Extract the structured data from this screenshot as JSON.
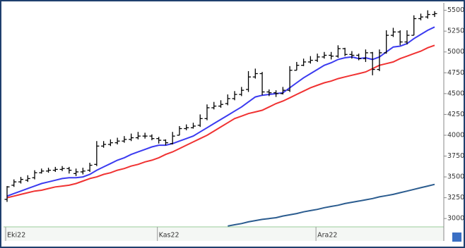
{
  "chart_data": {
    "type": "ohlc",
    "categories": [
      "Eki22",
      null,
      null,
      null,
      null,
      null,
      null,
      null,
      null,
      null,
      null,
      null,
      null,
      null,
      null,
      null,
      null,
      null,
      null,
      null,
      null,
      null,
      "Kas22",
      null,
      null,
      null,
      null,
      null,
      null,
      null,
      null,
      null,
      null,
      null,
      null,
      null,
      null,
      null,
      null,
      null,
      null,
      null,
      null,
      null,
      null,
      "Ara22",
      null,
      null,
      null,
      null,
      null,
      null,
      null,
      null,
      null,
      null,
      null,
      null,
      null,
      null,
      null,
      null,
      null
    ],
    "open": [
      3230,
      3400,
      3440,
      3460,
      3490,
      3550,
      3570,
      3580,
      3590,
      3600,
      3540,
      3560,
      3580,
      3650,
      3870,
      3890,
      3910,
      3930,
      3950,
      3970,
      3990,
      3990,
      3960,
      3940,
      3900,
      4000,
      4080,
      4090,
      4120,
      4200,
      4330,
      4350,
      4380,
      4440,
      4490,
      4550,
      4700,
      4740,
      4520,
      4510,
      4500,
      4540,
      4780,
      4840,
      4880,
      4900,
      4940,
      4960,
      4950,
      5040,
      4970,
      4960,
      4920,
      4990,
      4790,
      4990,
      5200,
      5240,
      5120,
      5200,
      5400,
      5420,
      5450
    ],
    "high": [
      3390,
      3470,
      3500,
      3520,
      3580,
      3600,
      3610,
      3620,
      3630,
      3620,
      3600,
      3610,
      3670,
      3930,
      3930,
      3950,
      3970,
      3990,
      4020,
      4040,
      4030,
      4010,
      3980,
      3950,
      4040,
      4110,
      4130,
      4150,
      4250,
      4370,
      4400,
      4420,
      4490,
      4530,
      4580,
      4770,
      4800,
      4760,
      4550,
      4540,
      4580,
      4830,
      4880,
      4920,
      4950,
      4980,
      5000,
      5000,
      5080,
      5050,
      5010,
      4980,
      5030,
      5000,
      5030,
      5260,
      5290,
      5260,
      5260,
      5440,
      5460,
      5500,
      5490
    ],
    "low": [
      3200,
      3380,
      3420,
      3440,
      3470,
      3540,
      3550,
      3560,
      3570,
      3540,
      3510,
      3530,
      3560,
      3630,
      3850,
      3870,
      3890,
      3910,
      3930,
      3950,
      3960,
      3940,
      3900,
      3880,
      3890,
      4000,
      4060,
      4080,
      4100,
      4180,
      4310,
      4330,
      4360,
      4420,
      4470,
      4520,
      4680,
      4480,
      4470,
      4460,
      4490,
      4520,
      4780,
      4830,
      4860,
      4880,
      4920,
      4910,
      4930,
      4950,
      4920,
      4900,
      4880,
      4720,
      4770,
      4980,
      5180,
      5080,
      5090,
      5200,
      5380,
      5400,
      5420
    ],
    "close": [
      3380,
      3440,
      3470,
      3480,
      3550,
      3570,
      3580,
      3590,
      3600,
      3580,
      3560,
      3570,
      3640,
      3870,
      3890,
      3910,
      3930,
      3950,
      3970,
      3990,
      3990,
      3960,
      3940,
      3910,
      3990,
      4080,
      4090,
      4110,
      4200,
      4330,
      4350,
      4370,
      4440,
      4490,
      4540,
      4700,
      4740,
      4520,
      4510,
      4500,
      4540,
      4780,
      4840,
      4880,
      4900,
      4940,
      4960,
      4950,
      5040,
      4970,
      4960,
      4920,
      4990,
      4790,
      4990,
      5200,
      5240,
      5120,
      5200,
      5400,
      5420,
      5450,
      5460
    ],
    "color": "#000000",
    "series": [
      {
        "color": "#3b3bf0",
        "values": [
          3270,
          3300,
          3330,
          3360,
          3390,
          3420,
          3440,
          3460,
          3480,
          3490,
          3490,
          3500,
          3530,
          3580,
          3620,
          3660,
          3700,
          3730,
          3770,
          3800,
          3830,
          3860,
          3880,
          3880,
          3900,
          3930,
          3960,
          3990,
          4040,
          4090,
          4140,
          4190,
          4240,
          4290,
          4340,
          4400,
          4460,
          4480,
          4490,
          4500,
          4510,
          4570,
          4630,
          4690,
          4740,
          4790,
          4840,
          4870,
          4910,
          4930,
          4940,
          4920,
          4930,
          4910,
          4940,
          5000,
          5060,
          5070,
          5100,
          5160,
          5210,
          5260,
          5300
        ]
      },
      {
        "color": "#f03232",
        "values": [
          3250,
          3270,
          3290,
          3310,
          3330,
          3340,
          3360,
          3380,
          3390,
          3400,
          3420,
          3450,
          3480,
          3500,
          3530,
          3550,
          3580,
          3600,
          3630,
          3650,
          3680,
          3700,
          3730,
          3770,
          3800,
          3840,
          3880,
          3920,
          3960,
          4000,
          4050,
          4100,
          4150,
          4200,
          4230,
          4260,
          4280,
          4300,
          4340,
          4380,
          4410,
          4450,
          4490,
          4530,
          4570,
          4600,
          4630,
          4650,
          4680,
          4700,
          4720,
          4740,
          4760,
          4800,
          4840,
          4860,
          4880,
          4920,
          4950,
          4980,
          5010,
          5050,
          5080
        ]
      },
      {
        "color": "#2b5c8f",
        "values": [
          null,
          null,
          null,
          null,
          null,
          null,
          null,
          null,
          null,
          null,
          null,
          null,
          null,
          null,
          null,
          null,
          null,
          null,
          null,
          null,
          null,
          null,
          null,
          null,
          null,
          null,
          null,
          null,
          null,
          null,
          null,
          null,
          2910,
          2925,
          2940,
          2960,
          2975,
          2990,
          3000,
          3010,
          3030,
          3045,
          3060,
          3080,
          3095,
          3110,
          3130,
          3145,
          3160,
          3180,
          3195,
          3210,
          3225,
          3240,
          3260,
          3275,
          3290,
          3310,
          3330,
          3350,
          3370,
          3390,
          3410
        ]
      }
    ],
    "ylim": [
      2900,
      5590
    ],
    "yticks": [
      3000,
      3250,
      3500,
      3750,
      4000,
      4250,
      4500,
      4750,
      5000,
      5250,
      5500
    ],
    "grid": false
  }
}
